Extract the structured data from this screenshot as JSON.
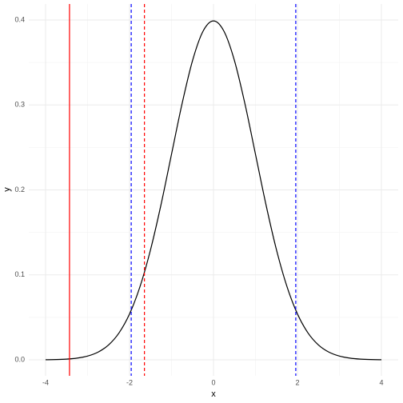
{
  "chart_data": {
    "type": "line",
    "x_label": "x",
    "y_label": "y",
    "x": [
      -4,
      -3.75,
      -3.5,
      -3.25,
      -3,
      -2.75,
      -2.5,
      -2.25,
      -2,
      -1.75,
      -1.5,
      -1.25,
      -1,
      -0.75,
      -0.5,
      -0.25,
      0,
      0.25,
      0.5,
      0.75,
      1,
      1.25,
      1.5,
      1.75,
      2,
      2.25,
      2.5,
      2.75,
      3,
      3.25,
      3.5,
      3.75,
      4
    ],
    "series": [
      {
        "color": "#000000",
        "values": [
          0.00013,
          0.00035,
          0.00087,
          0.00203,
          0.00443,
          0.00909,
          0.01753,
          0.03174,
          0.05399,
          0.08628,
          0.12952,
          0.18265,
          0.24197,
          0.30114,
          0.35207,
          0.38667,
          0.39894,
          0.38667,
          0.35207,
          0.30114,
          0.24197,
          0.18265,
          0.12952,
          0.08628,
          0.05399,
          0.03174,
          0.01753,
          0.00909,
          0.00443,
          0.00203,
          0.00087,
          0.00035,
          0.00013
        ]
      }
    ],
    "xlim": [
      -4.4,
      4.4
    ],
    "ylim": [
      -0.0188,
      0.4188
    ],
    "xticks": [
      -4,
      -2,
      0,
      2,
      4
    ],
    "yticks": [
      {
        "value": 0,
        "label": "0.0"
      },
      0.1,
      0.2,
      0.3,
      0.4
    ],
    "x_minor_grid": [
      -3,
      -1,
      1,
      3
    ],
    "y_minor_grid": [
      0.05,
      0.15,
      0.25,
      0.35
    ],
    "grid": true,
    "vlines": [
      {
        "x": -3.43,
        "color": "#ff0000",
        "dashed": false
      },
      {
        "x": -1.96,
        "color": "#0000ff",
        "dashed": true
      },
      {
        "x": -1.645,
        "color": "#ff0000",
        "dashed": true
      },
      {
        "x": 1.96,
        "color": "#0000ff",
        "dashed": true
      }
    ]
  }
}
